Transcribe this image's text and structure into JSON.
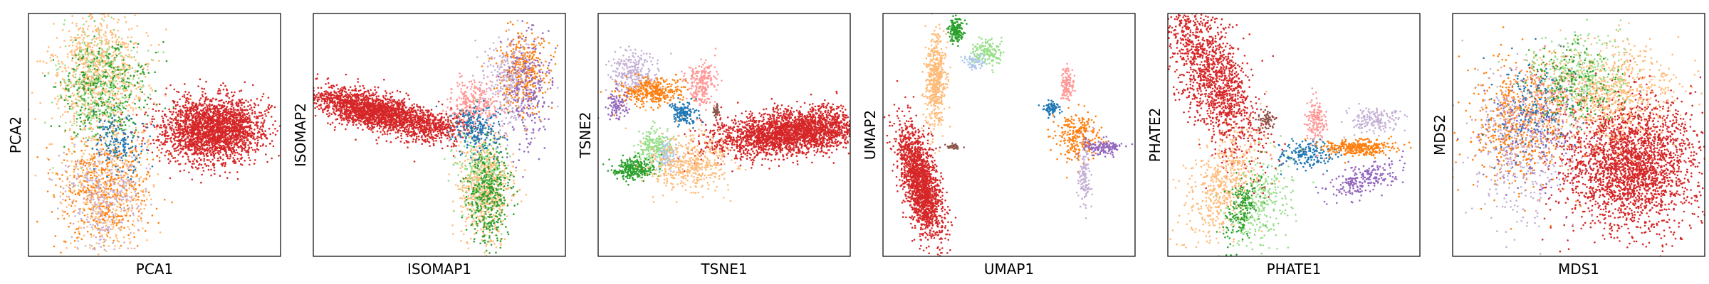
{
  "figure": {
    "background": "#ffffff",
    "point_colors": {
      "red": "#d62728",
      "orange": "#ff7f0e",
      "light_orange": "#ffbb78",
      "green": "#2ca02c",
      "light_green": "#98df8a",
      "blue": "#1f77b4",
      "light_blue": "#aec7e8",
      "purple": "#9467bd",
      "light_purple": "#c5b0d5",
      "pink": "#ff9896",
      "brown": "#8c564b"
    }
  },
  "chart_data": [
    {
      "type": "scatter",
      "xlabel": "PCA1",
      "ylabel": "PCA2",
      "xticks": [],
      "yticks": [],
      "grid": false,
      "clusters": [
        {
          "color": "red",
          "center": [
            0.73,
            0.52
          ],
          "spread": [
            0.1,
            0.065
          ],
          "count": 2400
        },
        {
          "color": "light_orange",
          "center": [
            0.28,
            0.76
          ],
          "spread": [
            0.085,
            0.12
          ],
          "count": 850
        },
        {
          "color": "green",
          "center": [
            0.3,
            0.68
          ],
          "spread": [
            0.09,
            0.1
          ],
          "count": 380
        },
        {
          "color": "light_green",
          "center": [
            0.28,
            0.7
          ],
          "spread": [
            0.09,
            0.12
          ],
          "count": 280
        },
        {
          "color": "light_orange",
          "center": [
            0.3,
            0.27
          ],
          "spread": [
            0.09,
            0.12
          ],
          "count": 550
        },
        {
          "color": "orange",
          "center": [
            0.3,
            0.28
          ],
          "spread": [
            0.1,
            0.12
          ],
          "count": 420
        },
        {
          "color": "light_purple",
          "center": [
            0.3,
            0.25
          ],
          "spread": [
            0.08,
            0.11
          ],
          "count": 280
        },
        {
          "color": "blue",
          "center": [
            0.36,
            0.47
          ],
          "spread": [
            0.05,
            0.06
          ],
          "count": 160
        }
      ]
    },
    {
      "type": "scatter",
      "xlabel": "ISOMAP1",
      "ylabel": "ISOMAP2",
      "xticks": [],
      "yticks": [],
      "grid": false,
      "clusters": [
        {
          "color": "red",
          "center": [
            0.23,
            0.6
          ],
          "spread": [
            0.12,
            0.035
          ],
          "count": 2000,
          "tilt": -0.25
        },
        {
          "color": "red",
          "center": [
            0.48,
            0.53
          ],
          "spread": [
            0.07,
            0.035
          ],
          "count": 400
        },
        {
          "color": "light_orange",
          "center": [
            0.68,
            0.3
          ],
          "spread": [
            0.05,
            0.11
          ],
          "count": 650
        },
        {
          "color": "green",
          "center": [
            0.7,
            0.26
          ],
          "spread": [
            0.045,
            0.1
          ],
          "count": 420
        },
        {
          "color": "light_green",
          "center": [
            0.65,
            0.35
          ],
          "spread": [
            0.05,
            0.1
          ],
          "count": 160
        },
        {
          "color": "orange",
          "center": [
            0.83,
            0.76
          ],
          "spread": [
            0.05,
            0.08
          ],
          "count": 380
        },
        {
          "color": "light_purple",
          "center": [
            0.78,
            0.72
          ],
          "spread": [
            0.06,
            0.1
          ],
          "count": 300
        },
        {
          "color": "purple",
          "center": [
            0.85,
            0.68
          ],
          "spread": [
            0.05,
            0.12
          ],
          "count": 250
        },
        {
          "color": "pink",
          "center": [
            0.63,
            0.63
          ],
          "spread": [
            0.05,
            0.05
          ],
          "count": 280
        },
        {
          "color": "blue",
          "center": [
            0.65,
            0.53
          ],
          "spread": [
            0.05,
            0.05
          ],
          "count": 220
        }
      ]
    },
    {
      "type": "scatter",
      "xlabel": "TSNE1",
      "ylabel": "TSNE2",
      "xticks": [],
      "yticks": [],
      "grid": false,
      "clusters": [
        {
          "color": "red",
          "center": [
            0.77,
            0.51
          ],
          "spread": [
            0.15,
            0.045
          ],
          "count": 2600,
          "tilt": 0.12
        },
        {
          "color": "light_purple",
          "center": [
            0.14,
            0.76
          ],
          "spread": [
            0.045,
            0.045
          ],
          "count": 260
        },
        {
          "color": "orange",
          "center": [
            0.22,
            0.68
          ],
          "spread": [
            0.07,
            0.03
          ],
          "count": 350
        },
        {
          "color": "purple",
          "center": [
            0.08,
            0.62
          ],
          "spread": [
            0.02,
            0.03
          ],
          "count": 90
        },
        {
          "color": "pink",
          "center": [
            0.41,
            0.71
          ],
          "spread": [
            0.03,
            0.045
          ],
          "count": 220
        },
        {
          "color": "blue",
          "center": [
            0.34,
            0.59
          ],
          "spread": [
            0.025,
            0.025
          ],
          "count": 140
        },
        {
          "color": "light_green",
          "center": [
            0.22,
            0.45
          ],
          "spread": [
            0.035,
            0.04
          ],
          "count": 230
        },
        {
          "color": "light_blue",
          "center": [
            0.27,
            0.42
          ],
          "spread": [
            0.025,
            0.03
          ],
          "count": 80
        },
        {
          "color": "green",
          "center": [
            0.14,
            0.36
          ],
          "spread": [
            0.04,
            0.02
          ],
          "count": 300
        },
        {
          "color": "light_orange",
          "center": [
            0.37,
            0.38
          ],
          "spread": [
            0.08,
            0.06
          ],
          "count": 450
        },
        {
          "color": "brown",
          "center": [
            0.47,
            0.6
          ],
          "spread": [
            0.006,
            0.012
          ],
          "count": 40
        }
      ]
    },
    {
      "type": "scatter",
      "xlabel": "UMAP1",
      "ylabel": "UMAP2",
      "xticks": [],
      "yticks": [],
      "grid": false,
      "clusters": [
        {
          "color": "red",
          "center": [
            0.15,
            0.3
          ],
          "spread": [
            0.032,
            0.12
          ],
          "count": 1700,
          "tilt": 0.25
        },
        {
          "color": "light_orange",
          "center": [
            0.21,
            0.72
          ],
          "spread": [
            0.02,
            0.1
          ],
          "count": 520
        },
        {
          "color": "green",
          "center": [
            0.29,
            0.93
          ],
          "spread": [
            0.015,
            0.025
          ],
          "count": 150
        },
        {
          "color": "light_green",
          "center": [
            0.41,
            0.84
          ],
          "spread": [
            0.03,
            0.025
          ],
          "count": 150
        },
        {
          "color": "light_blue",
          "center": [
            0.36,
            0.8
          ],
          "spread": [
            0.02,
            0.015
          ],
          "count": 60
        },
        {
          "color": "brown",
          "center": [
            0.28,
            0.45
          ],
          "spread": [
            0.02,
            0.006
          ],
          "count": 40
        },
        {
          "color": "pink",
          "center": [
            0.73,
            0.71
          ],
          "spread": [
            0.012,
            0.035
          ],
          "count": 120
        },
        {
          "color": "orange",
          "center": [
            0.77,
            0.5
          ],
          "spread": [
            0.04,
            0.05
          ],
          "count": 260
        },
        {
          "color": "blue",
          "center": [
            0.67,
            0.61
          ],
          "spread": [
            0.015,
            0.015
          ],
          "count": 90
        },
        {
          "color": "purple",
          "center": [
            0.87,
            0.45
          ],
          "spread": [
            0.04,
            0.015
          ],
          "count": 140
        },
        {
          "color": "light_purple",
          "center": [
            0.8,
            0.34
          ],
          "spread": [
            0.012,
            0.06
          ],
          "count": 120
        }
      ]
    },
    {
      "type": "scatter",
      "xlabel": "PHATE1",
      "ylabel": "PHATE2",
      "xticks": [],
      "yticks": [],
      "grid": false,
      "clusters": [
        {
          "color": "red",
          "center": [
            0.18,
            0.74
          ],
          "spread": [
            0.06,
            0.17
          ],
          "count": 1500,
          "tilt": 0.45
        },
        {
          "color": "light_orange",
          "center": [
            0.22,
            0.3
          ],
          "spread": [
            0.06,
            0.12
          ],
          "count": 520,
          "tilt": -0.35
        },
        {
          "color": "green",
          "center": [
            0.3,
            0.2
          ],
          "spread": [
            0.03,
            0.07
          ],
          "count": 200,
          "tilt": -0.4
        },
        {
          "color": "light_green",
          "center": [
            0.38,
            0.22
          ],
          "spread": [
            0.06,
            0.1
          ],
          "count": 260,
          "tilt": -0.3
        },
        {
          "color": "brown",
          "center": [
            0.39,
            0.56
          ],
          "spread": [
            0.02,
            0.02
          ],
          "count": 60
        },
        {
          "color": "blue",
          "center": [
            0.54,
            0.42
          ],
          "spread": [
            0.06,
            0.03
          ],
          "count": 180
        },
        {
          "color": "pink",
          "center": [
            0.59,
            0.55
          ],
          "spread": [
            0.02,
            0.05
          ],
          "count": 150
        },
        {
          "color": "orange",
          "center": [
            0.76,
            0.45
          ],
          "spread": [
            0.07,
            0.018
          ],
          "count": 320
        },
        {
          "color": "purple",
          "center": [
            0.78,
            0.32
          ],
          "spread": [
            0.07,
            0.03
          ],
          "count": 230,
          "tilt": 0.3
        },
        {
          "color": "light_purple",
          "center": [
            0.82,
            0.56
          ],
          "spread": [
            0.05,
            0.03
          ],
          "count": 160
        }
      ]
    },
    {
      "type": "scatter",
      "xlabel": "MDS1",
      "ylabel": "MDS2",
      "xticks": [],
      "yticks": [],
      "grid": false,
      "clusters": [
        {
          "color": "red",
          "center": [
            0.7,
            0.38
          ],
          "spread": [
            0.13,
            0.13
          ],
          "count": 2600
        },
        {
          "color": "orange",
          "center": [
            0.26,
            0.55
          ],
          "spread": [
            0.1,
            0.13
          ],
          "count": 600
        },
        {
          "color": "light_orange",
          "center": [
            0.6,
            0.68
          ],
          "spread": [
            0.14,
            0.1
          ],
          "count": 750
        },
        {
          "color": "light_purple",
          "center": [
            0.27,
            0.45
          ],
          "spread": [
            0.11,
            0.15
          ],
          "count": 400
        },
        {
          "color": "light_green",
          "center": [
            0.5,
            0.75
          ],
          "spread": [
            0.1,
            0.08
          ],
          "count": 350
        },
        {
          "color": "green",
          "center": [
            0.48,
            0.72
          ],
          "spread": [
            0.09,
            0.08
          ],
          "count": 180
        },
        {
          "color": "blue",
          "center": [
            0.32,
            0.6
          ],
          "spread": [
            0.08,
            0.1
          ],
          "count": 160
        },
        {
          "color": "pink",
          "center": [
            0.35,
            0.65
          ],
          "spread": [
            0.08,
            0.08
          ],
          "count": 130
        },
        {
          "color": "brown",
          "center": [
            0.4,
            0.6
          ],
          "spread": [
            0.06,
            0.08
          ],
          "count": 40
        },
        {
          "color": "purple",
          "center": [
            0.3,
            0.5
          ],
          "spread": [
            0.1,
            0.12
          ],
          "count": 140
        }
      ]
    }
  ]
}
